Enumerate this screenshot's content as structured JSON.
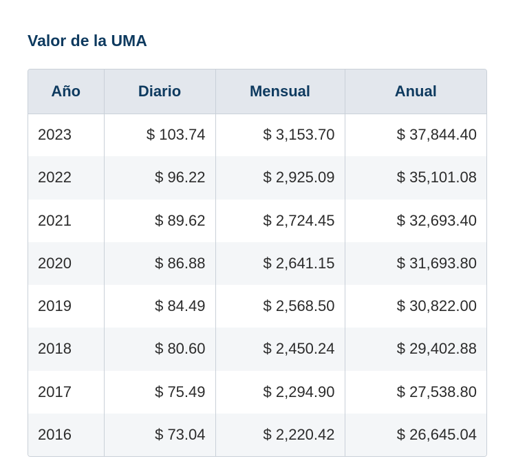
{
  "title": "Valor de la UMA",
  "table": {
    "headers": [
      "Año",
      "Diario",
      "Mensual",
      "Anual"
    ],
    "rows": [
      [
        "2023",
        "$ 103.74",
        "$ 3,153.70",
        "$ 37,844.40"
      ],
      [
        "2022",
        "$ 96.22",
        "$ 2,925.09",
        "$ 35,101.08"
      ],
      [
        "2021",
        "$ 89.62",
        "$ 2,724.45",
        "$ 32,693.40"
      ],
      [
        "2020",
        "$ 86.88",
        "$ 2,641.15",
        "$ 31,693.80"
      ],
      [
        "2019",
        "$ 84.49",
        "$ 2,568.50",
        "$ 30,822.00"
      ],
      [
        "2018",
        "$ 80.60",
        "$ 2,450.24",
        "$ 29,402.88"
      ],
      [
        "2017",
        "$ 75.49",
        "$ 2,294.90",
        "$ 27,538.80"
      ],
      [
        "2016",
        "$ 73.04",
        "$ 2,220.42",
        "$ 26,645.04"
      ]
    ]
  },
  "colors": {
    "title": "#0e3a5f",
    "header_bg": "#e3e7ed",
    "stripe_bg": "#f4f6f8",
    "border": "#c9d0d8",
    "text": "#2b2b2b"
  }
}
